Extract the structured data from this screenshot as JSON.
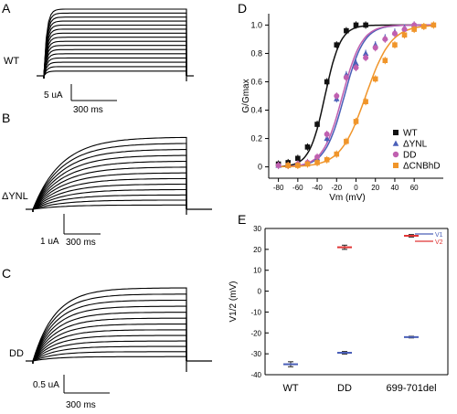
{
  "chart_data": [
    {
      "panel": "A",
      "type": "line",
      "trace_label": "WT",
      "scale_current": "5 uA",
      "scale_time": "300 ms",
      "n_traces": 16,
      "tau_ms": 14
    },
    {
      "panel": "B",
      "type": "line",
      "trace_label": "ΔYNL",
      "scale_current": "1 uA",
      "scale_time": "300 ms",
      "n_traces": 13,
      "tau_ms": 130
    },
    {
      "panel": "C",
      "type": "line",
      "trace_label": "DD",
      "scale_current": "0.5 uA",
      "scale_time": "300 ms",
      "n_traces": 13,
      "tau_ms": 100
    },
    {
      "panel": "D",
      "type": "scatter",
      "xlabel": "Vm (mV)",
      "ylabel": "G/Gmax",
      "xlim": [
        -90,
        90
      ],
      "ylim": [
        -0.08,
        1.08
      ],
      "xticks": [
        -80,
        -60,
        -40,
        -20,
        0,
        20,
        40,
        60
      ],
      "yticks": [
        0,
        0.2,
        0.4,
        0.6,
        0.8,
        1.0
      ],
      "ytick_labels": [
        "0",
        "0.2",
        "0.4",
        "0.6",
        "0.8",
        "1.0"
      ],
      "legend_position": "right",
      "series": [
        {
          "name": "WT",
          "color": "#111111",
          "marker": "square",
          "v_half": -32,
          "slope": 8,
          "x": [
            -80,
            -70,
            -60,
            -50,
            -40,
            -30,
            -20,
            -10,
            0,
            10
          ],
          "y": [
            0.02,
            0.03,
            0.06,
            0.14,
            0.3,
            0.6,
            0.86,
            0.96,
            1.0,
            1.0
          ]
        },
        {
          "name": "ΔYNL",
          "color": "#4a5fb8",
          "marker": "triangle",
          "v_half": -12,
          "slope": 10,
          "x": [
            -80,
            -70,
            -60,
            -50,
            -40,
            -30,
            -20,
            -10,
            0,
            10,
            20,
            30,
            40,
            50,
            60
          ],
          "y": [
            0.01,
            0.01,
            0.02,
            0.03,
            0.06,
            0.2,
            0.48,
            0.65,
            0.73,
            0.8,
            0.86,
            0.91,
            0.95,
            0.98,
            1.0
          ]
        },
        {
          "name": "DD",
          "color": "#c060b0",
          "marker": "circle",
          "v_half": -14,
          "slope": 10,
          "x": [
            -80,
            -70,
            -60,
            -50,
            -40,
            -30,
            -20,
            -10,
            0,
            10,
            20,
            30,
            40,
            50,
            60
          ],
          "y": [
            0.01,
            0.01,
            0.02,
            0.03,
            0.07,
            0.23,
            0.5,
            0.63,
            0.7,
            0.77,
            0.84,
            0.9,
            0.94,
            0.97,
            1.0
          ]
        },
        {
          "name": "ΔCNBhD",
          "color": "#f0952a",
          "marker": "square",
          "v_half": 10,
          "slope": 13,
          "x": [
            -70,
            -60,
            -50,
            -40,
            -30,
            -20,
            -10,
            0,
            10,
            20,
            30,
            40,
            50,
            60,
            70,
            80
          ],
          "y": [
            0.01,
            0.01,
            0.02,
            0.03,
            0.05,
            0.09,
            0.18,
            0.32,
            0.46,
            0.62,
            0.75,
            0.86,
            0.93,
            0.97,
            0.99,
            1.0
          ]
        }
      ]
    },
    {
      "panel": "E",
      "type": "scatter",
      "ylabel": "V1/2 (mV)",
      "ylim": [
        -40,
        30
      ],
      "yticks": [
        -40,
        -30,
        -20,
        -10,
        0,
        10,
        20,
        30
      ],
      "categories": [
        "WT",
        "DD",
        "699-701del"
      ],
      "legend_position": "top-right",
      "series": [
        {
          "name": "V1",
          "color": "#4a5fb8",
          "values": [
            -35,
            -29.5,
            -22
          ],
          "errors": [
            1.2,
            0.6,
            0.4
          ]
        },
        {
          "name": "V2",
          "color": "#e03535",
          "values": [
            null,
            21,
            26.5
          ],
          "errors": [
            null,
            1.0,
            0.6
          ]
        }
      ]
    }
  ],
  "panel_labels": {
    "a": "A",
    "b": "B",
    "c": "C",
    "d": "D",
    "e": "E"
  }
}
